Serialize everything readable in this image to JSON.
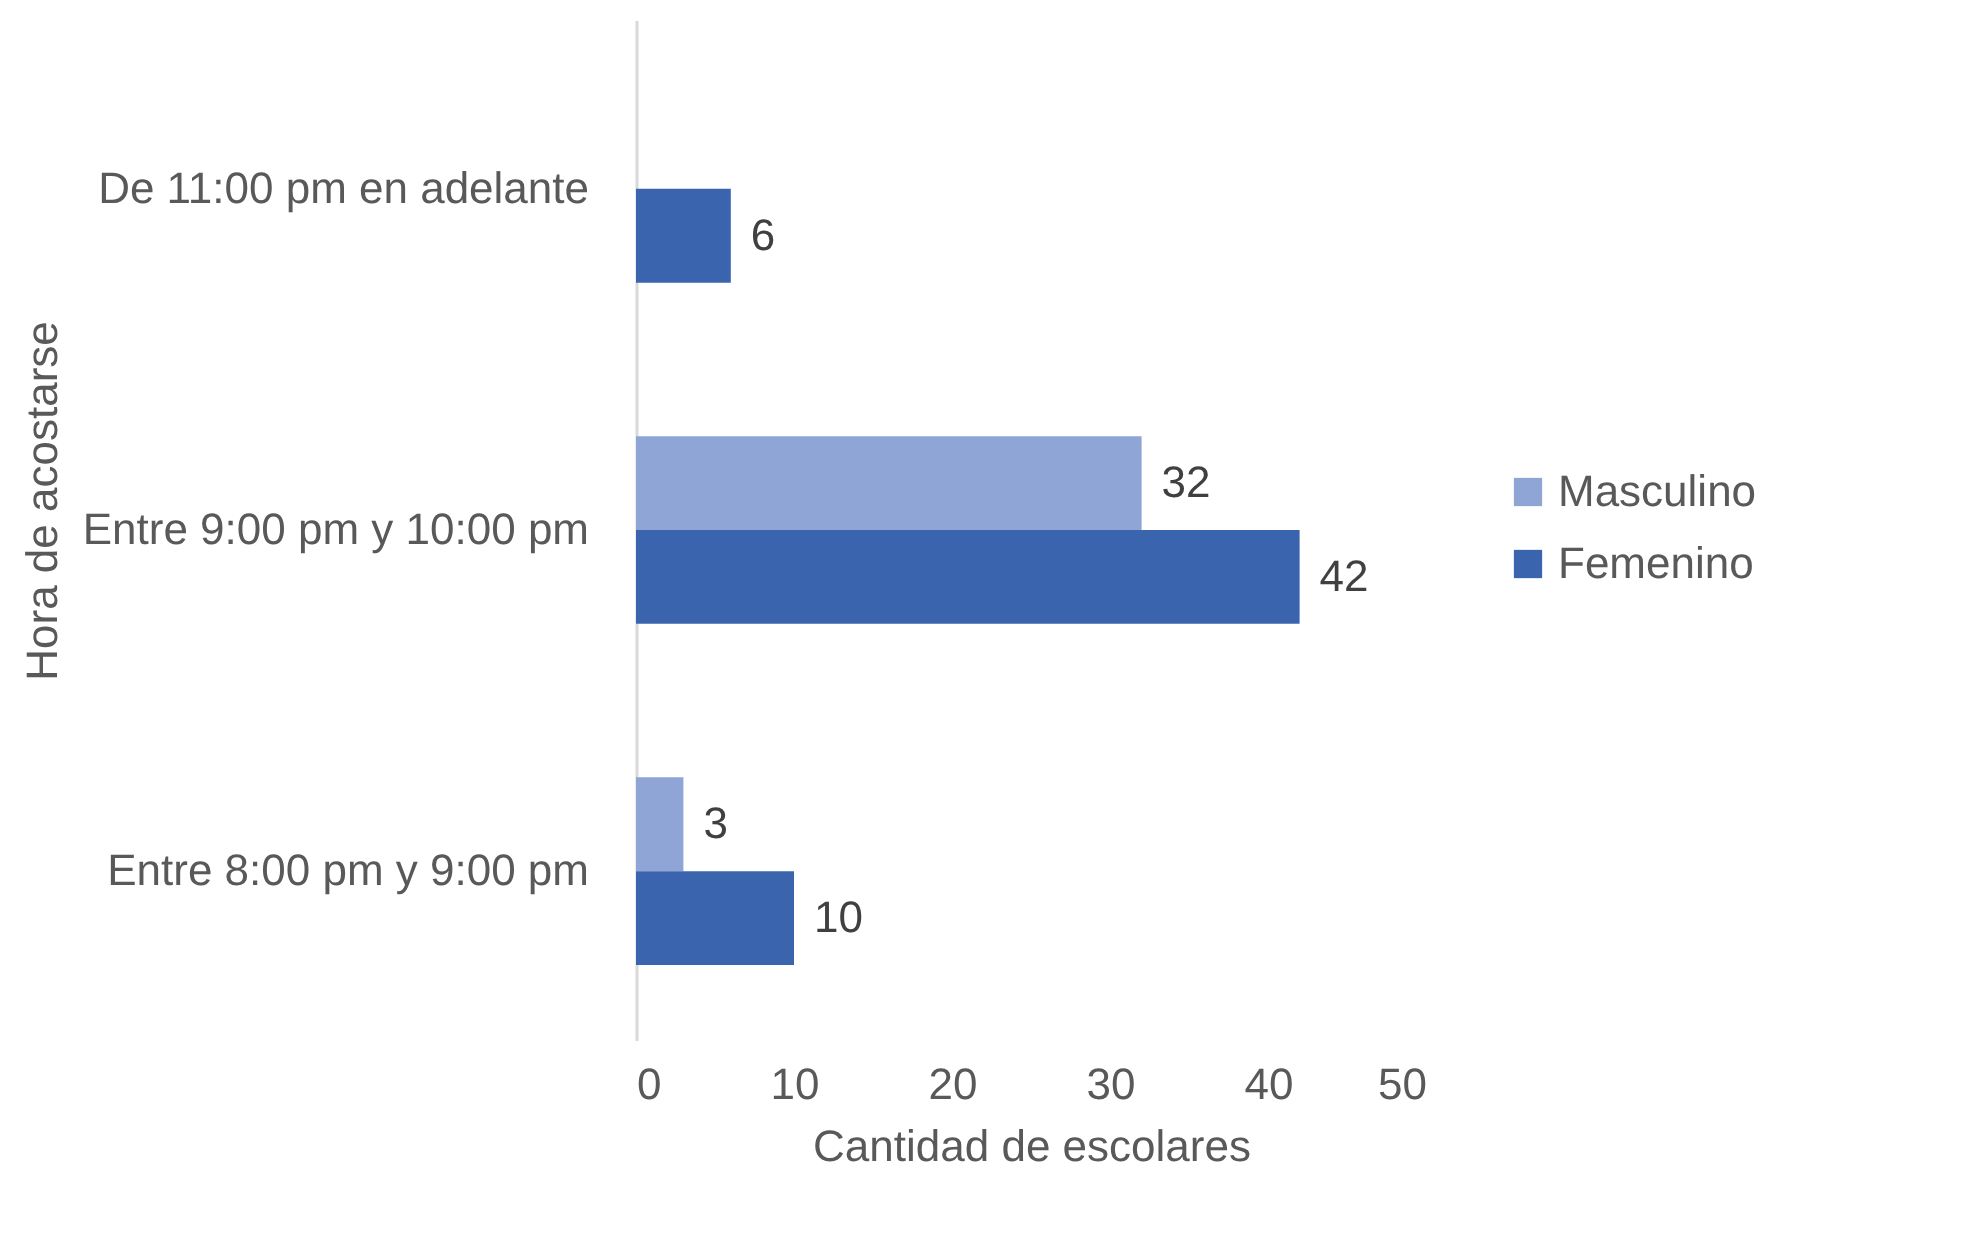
{
  "chart_data": {
    "type": "bar",
    "orientation": "horizontal",
    "xlabel": "Cantidad de escolares",
    "ylabel": "Hora de acostarse",
    "categories": [
      "De 11:00 pm en adelante",
      "Entre 9:00 pm y 10:00 pm",
      "Entre 8:00 pm y 9:00 pm"
    ],
    "series": [
      {
        "name": "Masculino",
        "color": "#8fa5d6",
        "values": [
          null,
          32,
          3
        ]
      },
      {
        "name": "Femenino",
        "color": "#3a64ad",
        "values": [
          6,
          42,
          10
        ]
      }
    ],
    "xlim": [
      0,
      50
    ],
    "xticks": [
      0,
      10,
      20,
      30,
      40,
      50
    ],
    "grid": false,
    "legend": "right",
    "data_labels": true
  }
}
